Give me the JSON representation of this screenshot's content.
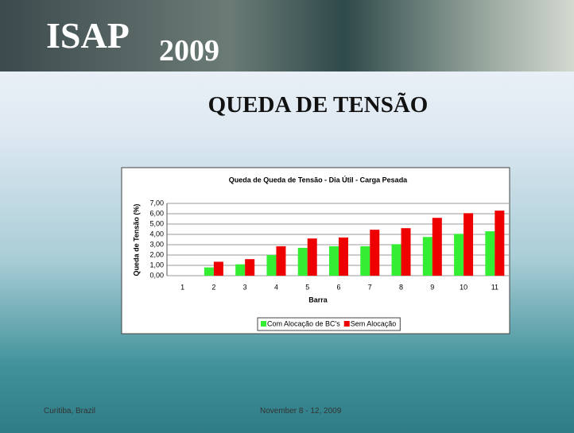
{
  "header": {
    "title": "ISAP",
    "year": "2009"
  },
  "slide_title": "QUEDA DE TENSÃO",
  "footer": {
    "location": "Curitiba, Brazil",
    "date": "November 8 - 12, 2009"
  },
  "chart_data": {
    "type": "bar",
    "title": "Queda de Queda de Tensão - Dia Útil - Carga Pesada",
    "x_label": "Barra",
    "y_label": "Queda de Tensão (%)",
    "categories": [
      "1",
      "2",
      "3",
      "4",
      "5",
      "6",
      "7",
      "8",
      "9",
      "10",
      "11"
    ],
    "series": [
      {
        "name": "Com Alocação de BC's",
        "color": "#33ee33",
        "values": [
          0,
          0.8,
          1.1,
          2.0,
          2.7,
          2.85,
          2.85,
          3.05,
          3.75,
          4.05,
          4.3
        ]
      },
      {
        "name": "Sem Alocação",
        "color": "#ee0000",
        "values": [
          0,
          1.35,
          1.6,
          2.85,
          3.6,
          3.7,
          4.45,
          4.6,
          5.6,
          6.05,
          6.3
        ]
      }
    ],
    "ylim": [
      0,
      7
    ],
    "yticks": [
      {
        "value": 0,
        "label": "0,00"
      },
      {
        "value": 1,
        "label": "1,00"
      },
      {
        "value": 2,
        "label": "2,00"
      },
      {
        "value": 3,
        "label": "3,00"
      },
      {
        "value": 4,
        "label": "4,00"
      },
      {
        "value": 5,
        "label": "5,00"
      },
      {
        "value": 6,
        "label": "6,00"
      },
      {
        "value": 7,
        "label": "7,00"
      }
    ],
    "grid": true,
    "legend": "bottom"
  }
}
